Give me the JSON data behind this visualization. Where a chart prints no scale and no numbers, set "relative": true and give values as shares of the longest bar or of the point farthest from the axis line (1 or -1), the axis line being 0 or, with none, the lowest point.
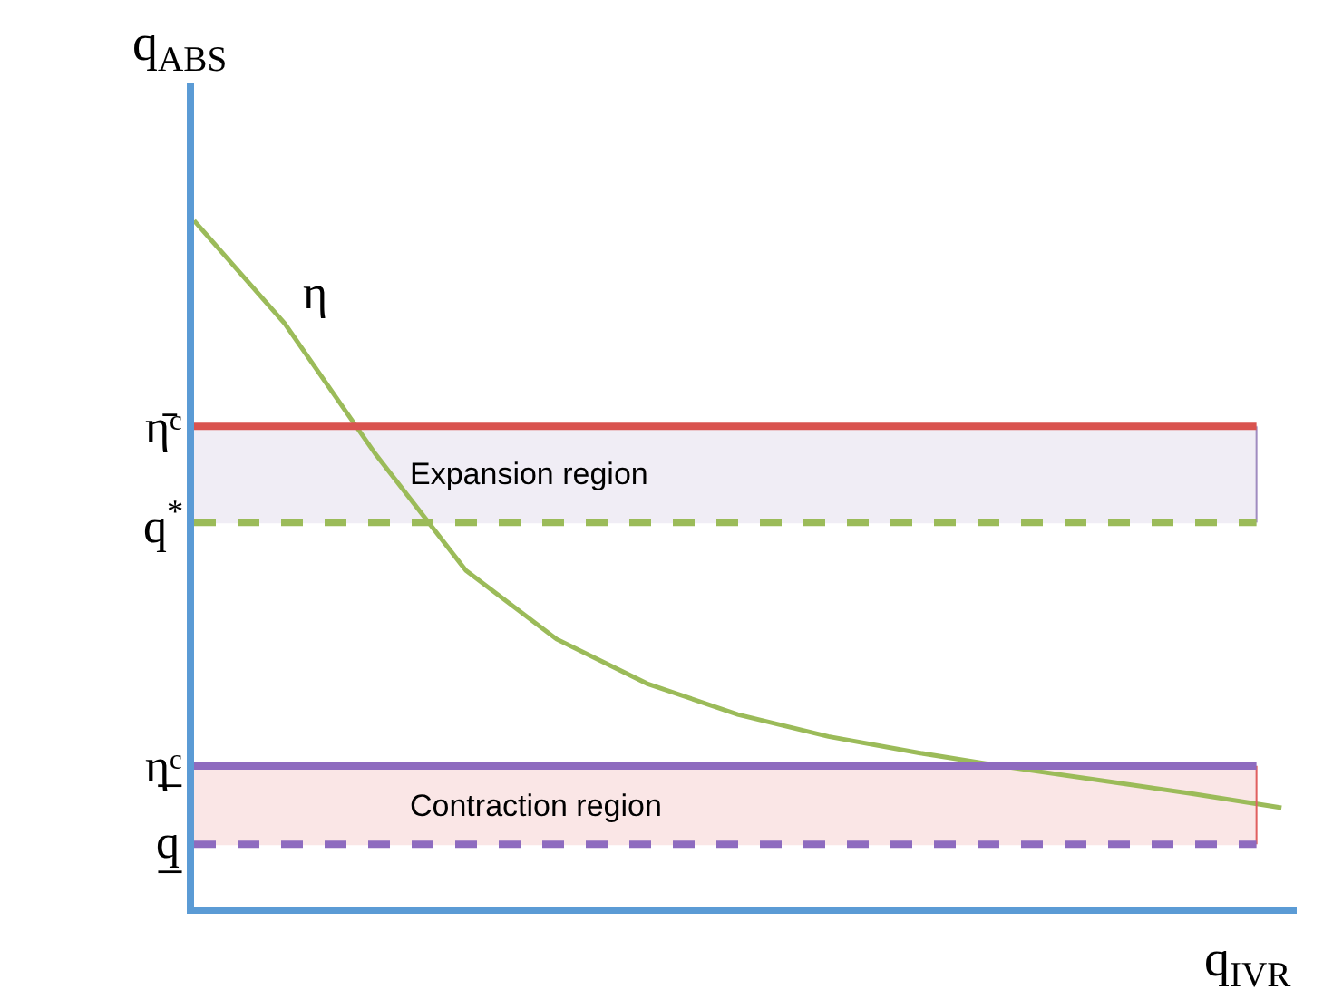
{
  "chart_data": {
    "type": "line",
    "relative": true,
    "xlabel": "q$_{IVR}$",
    "ylabel": "q$_{ABS}$",
    "categories": [
      null,
      null,
      null,
      null,
      null,
      null,
      null,
      null,
      null,
      null,
      null,
      null,
      null
    ],
    "series": [
      {
        "name": "η",
        "color": "#9bbb59",
        "values": [
          1.0,
          0.85,
          0.66,
          0.49,
          0.39,
          0.325,
          0.28,
          0.248,
          0.224,
          0.203,
          0.184,
          0.165,
          0.144
        ]
      }
    ],
    "ref_lines": [
      {
        "axis": "y",
        "value": 0.7,
        "label": "η̄ᶜ",
        "color": "#d9534f",
        "line_style": "solid"
      },
      {
        "axis": "y",
        "value": 0.56,
        "label": "q$^{*}$",
        "color": "#9bbb59",
        "line_style": "dashed"
      },
      {
        "axis": "y",
        "value": 0.205,
        "label": "η̲ᶜ",
        "color": "#8e6bbf",
        "line_style": "solid"
      },
      {
        "axis": "y",
        "value": 0.091,
        "label": "q̲",
        "color": "#8e6bbf",
        "line_style": "dashed"
      }
    ],
    "bands": [
      {
        "axis": "y",
        "from": 0.56,
        "to": 0.7,
        "label": "Expansion region",
        "color": "#a08cc0"
      },
      {
        "axis": "y",
        "from": 0.091,
        "to": 0.205,
        "label": "Contraction region",
        "color": "#e06060"
      }
    ],
    "legend": false,
    "grid": false,
    "marker": "none",
    "line_style": "solid"
  }
}
